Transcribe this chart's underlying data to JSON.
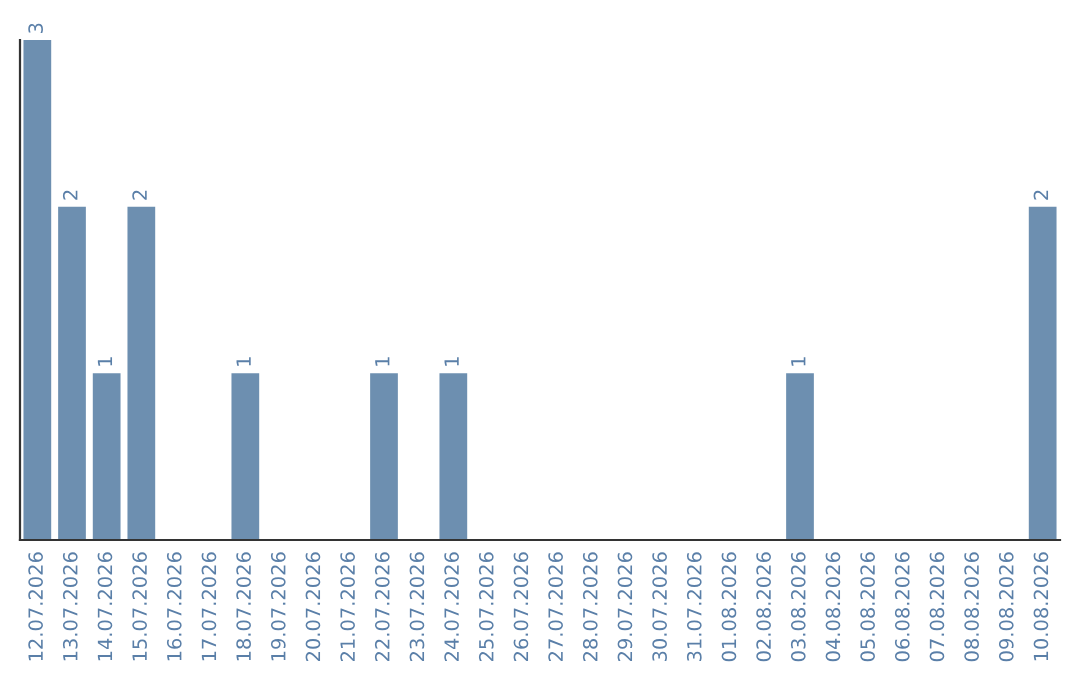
{
  "chart_data": {
    "type": "bar",
    "categories": [
      "12.07.2026",
      "13.07.2026",
      "14.07.2026",
      "15.07.2026",
      "16.07.2026",
      "17.07.2026",
      "18.07.2026",
      "19.07.2026",
      "20.07.2026",
      "21.07.2026",
      "22.07.2026",
      "23.07.2026",
      "24.07.2026",
      "25.07.2026",
      "26.07.2026",
      "27.07.2026",
      "28.07.2026",
      "29.07.2026",
      "30.07.2026",
      "31.07.2026",
      "01.08.2026",
      "02.08.2026",
      "03.08.2026",
      "04.08.2026",
      "05.08.2026",
      "06.08.2026",
      "07.08.2026",
      "08.08.2026",
      "09.08.2026",
      "10.08.2026"
    ],
    "values": [
      3,
      2,
      1,
      2,
      0,
      0,
      1,
      0,
      0,
      0,
      1,
      0,
      1,
      0,
      0,
      0,
      0,
      0,
      0,
      0,
      0,
      0,
      1,
      0,
      0,
      0,
      0,
      0,
      0,
      2
    ],
    "value_labels": [
      "3",
      "2",
      "1",
      "2",
      null,
      null,
      "1",
      null,
      null,
      null,
      "1",
      null,
      "1",
      null,
      null,
      null,
      null,
      null,
      null,
      null,
      null,
      null,
      "1",
      null,
      null,
      null,
      null,
      null,
      null,
      "2"
    ],
    "color": "#6d8fb0",
    "grid": false,
    "tick_labels": "x"
  }
}
